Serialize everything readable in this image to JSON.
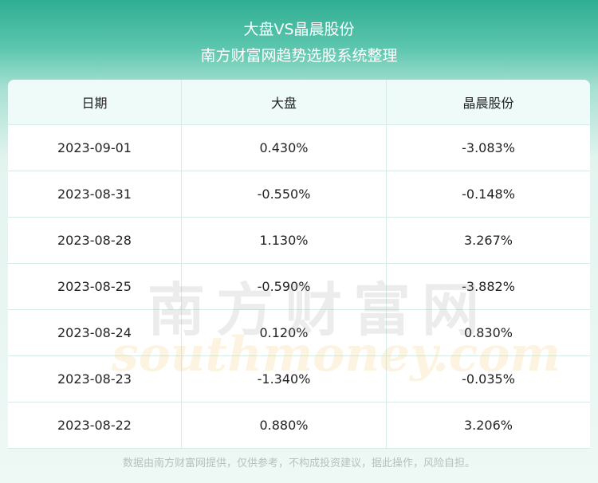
{
  "header": {
    "title": "大盘VS晶晨股份",
    "subtitle": "南方财富网趋势选股系统整理"
  },
  "table": {
    "columns": [
      "日期",
      "大盘",
      "晶晨股份"
    ],
    "rows": [
      [
        "2023-09-01",
        "0.430%",
        "-3.083%"
      ],
      [
        "2023-08-31",
        "-0.550%",
        "-0.148%"
      ],
      [
        "2023-08-28",
        "1.130%",
        "3.267%"
      ],
      [
        "2023-08-25",
        "-0.590%",
        "-3.882%"
      ],
      [
        "2023-08-24",
        "0.120%",
        "0.830%"
      ],
      [
        "2023-08-23",
        "-1.340%",
        "-0.035%"
      ],
      [
        "2023-08-22",
        "0.880%",
        "3.206%"
      ]
    ]
  },
  "watermark": {
    "brand": "南方财富网",
    "site": "southmoney.com"
  },
  "footer": "数据由南方财富网提供，仅供参考，不构成投资建议，据此操作，风险自担。"
}
